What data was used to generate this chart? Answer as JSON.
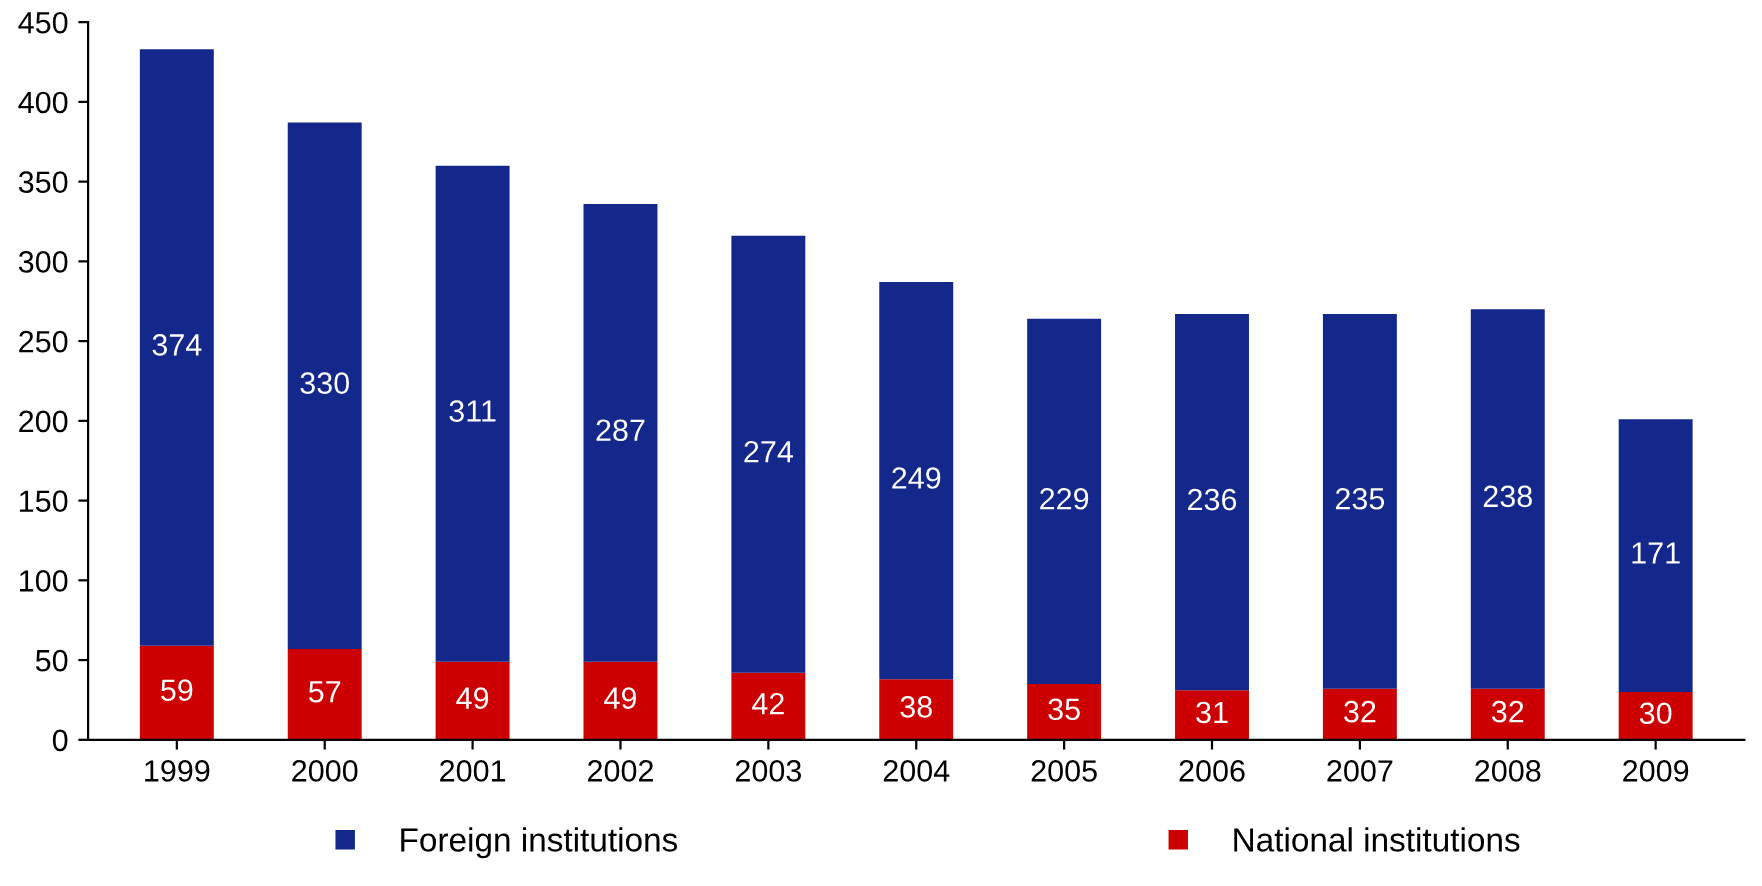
{
  "chart_data": {
    "type": "bar",
    "stacked": true,
    "categories": [
      "1999",
      "2000",
      "2001",
      "2002",
      "2003",
      "2004",
      "2005",
      "2006",
      "2007",
      "2008",
      "2009"
    ],
    "series": [
      {
        "name": "National institutions",
        "color": "#cc0000",
        "values": [
          59,
          57,
          49,
          49,
          42,
          38,
          35,
          31,
          32,
          32,
          30
        ]
      },
      {
        "name": "Foreign institutions",
        "color": "#13288a",
        "values": [
          374,
          330,
          311,
          287,
          274,
          249,
          229,
          236,
          235,
          238,
          171
        ]
      }
    ],
    "ylim": [
      0,
      450
    ],
    "yticks": [
      0,
      50,
      100,
      150,
      200,
      250,
      300,
      350,
      400,
      450
    ],
    "data_labels": true,
    "legend": "bottom",
    "grid": false,
    "marker": "square"
  }
}
